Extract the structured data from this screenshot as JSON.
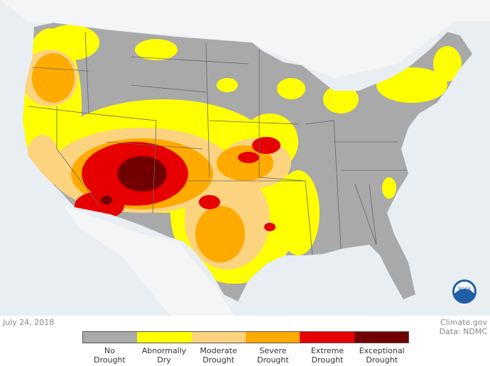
{
  "date": "July 24, 2018",
  "credit": {
    "source": "Climate.gov",
    "data": "Data: NDMC"
  },
  "logo": "NOAA",
  "legend": [
    {
      "line1": "No",
      "line2": "Drought",
      "color": "#a9a9a9"
    },
    {
      "line1": "Abnormally",
      "line2": "Dry",
      "color": "#ffff00"
    },
    {
      "line1": "Moderate",
      "line2": "Drought",
      "color": "#fcd37f"
    },
    {
      "line1": "Severe",
      "line2": "Drought",
      "color": "#ffaa00"
    },
    {
      "line1": "Extreme",
      "line2": "Drought",
      "color": "#e60000"
    },
    {
      "line1": "Exceptional",
      "line2": "Drought",
      "color": "#730000"
    }
  ]
}
